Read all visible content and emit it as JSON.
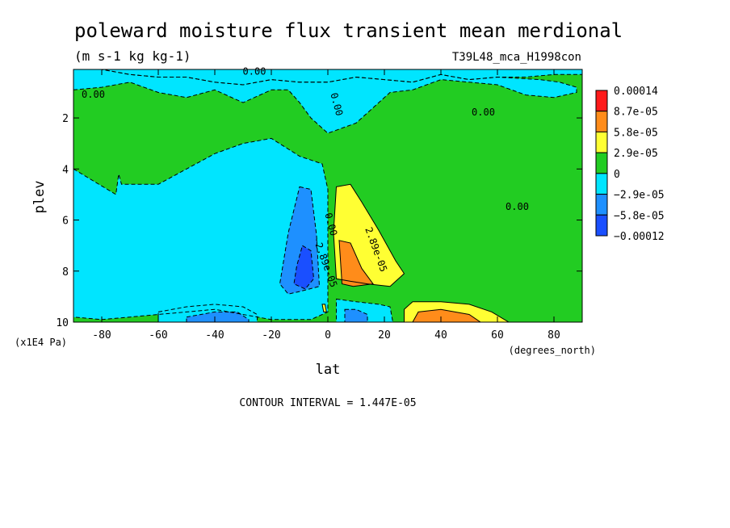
{
  "chart_data": {
    "type": "heatmap",
    "title": "poleward moisture flux transient mean merdional",
    "units": "(m s-1 kg kg-1)",
    "run_label": "T39L48_mca_H1998con",
    "xlabel": "lat",
    "x_units": "(degrees_north)",
    "ylabel": "plev",
    "y_units": "(x1E4 Pa)",
    "xlim": [
      -90,
      90
    ],
    "ylim": [
      10,
      0.1
    ],
    "x_ticks": [
      -80,
      -60,
      -40,
      -20,
      0,
      20,
      40,
      60,
      80
    ],
    "x_tick_labels": [
      "-80",
      "-60",
      "-40",
      "-20",
      "0",
      "20",
      "40",
      "60",
      "80"
    ],
    "y_ticks": [
      2,
      4,
      6,
      8,
      10
    ],
    "y_tick_labels": [
      "2",
      "4",
      "6",
      "8",
      "10"
    ],
    "footer": "CONTOUR INTERVAL = 1.447E-05",
    "colorbar": {
      "boundaries": [
        "0.00014",
        "8.7e-05",
        "5.8e-05",
        "2.9e-05",
        "0",
        "−2.9e-05",
        "−5.8e-05",
        "−0.00012"
      ],
      "colors": [
        "#ff1a1a",
        "#ff8c1a",
        "#ffff33",
        "#22cc22",
        "#00e5ff",
        "#1e90ff",
        "#1a4fff"
      ]
    },
    "contour_labels": [
      {
        "text": "0.00",
        "lat": -83,
        "plev": 1.2
      },
      {
        "text": "0.00",
        "lat": -26,
        "plev": 0.3
      },
      {
        "text": "0.00",
        "lat": 2,
        "plev": 1.5
      },
      {
        "text": "0.00",
        "lat": 55,
        "plev": 1.9
      },
      {
        "text": "0.00",
        "lat": 67,
        "plev": 5.6
      },
      {
        "text": "0.00",
        "lat": 0,
        "plev": 6.2
      },
      {
        "text": "-2.89e-05",
        "lat": -2,
        "plev": 7.7
      },
      {
        "text": "2.89e-05",
        "lat": 16,
        "plev": 7.2
      }
    ],
    "regions": [
      {
        "level": 0,
        "points": [
          [
            -90,
            0.1
          ],
          [
            90,
            0.1
          ],
          [
            90,
            10
          ],
          [
            -90,
            10
          ]
        ]
      },
      {
        "level": -1,
        "points": [
          [
            -90,
            0.1
          ],
          [
            -80,
            0.1
          ],
          [
            -70,
            0.3
          ],
          [
            -60,
            0.4
          ],
          [
            -50,
            0.4
          ],
          [
            -40,
            0.6
          ],
          [
            -30,
            0.7
          ],
          [
            -20,
            0.5
          ],
          [
            -10,
            0.6
          ],
          [
            0,
            0.6
          ],
          [
            10,
            0.4
          ],
          [
            20,
            0.5
          ],
          [
            30,
            0.6
          ],
          [
            40,
            0.3
          ],
          [
            50,
            0.5
          ],
          [
            60,
            0.4
          ],
          [
            70,
            0.4
          ],
          [
            80,
            0.3
          ],
          [
            90,
            0.3
          ],
          [
            90,
            0.1
          ]
        ]
      },
      {
        "level": -1,
        "points": [
          [
            -90,
            0.9
          ],
          [
            -80,
            0.8
          ],
          [
            -70,
            0.6
          ],
          [
            -60,
            1.0
          ],
          [
            -50,
            1.2
          ],
          [
            -40,
            0.9
          ],
          [
            -30,
            1.4
          ],
          [
            -20,
            0.9
          ],
          [
            -14,
            0.9
          ],
          [
            -10,
            1.4
          ],
          [
            -6,
            2.0
          ],
          [
            0,
            2.6
          ],
          [
            10,
            2.2
          ],
          [
            22,
            1.0
          ],
          [
            30,
            0.9
          ],
          [
            40,
            0.5
          ],
          [
            50,
            0.6
          ],
          [
            60,
            0.7
          ],
          [
            70,
            1.1
          ],
          [
            80,
            1.2
          ],
          [
            88,
            1.0
          ],
          [
            88,
            0.8
          ],
          [
            82,
            0.6
          ],
          [
            75,
            0.5
          ],
          [
            60,
            0.4
          ],
          [
            50,
            0.5
          ],
          [
            40,
            0.3
          ],
          [
            30,
            0.6
          ],
          [
            20,
            0.5
          ],
          [
            10,
            0.4
          ],
          [
            0,
            0.6
          ],
          [
            -10,
            0.6
          ],
          [
            -20,
            0.5
          ],
          [
            -30,
            0.7
          ],
          [
            -40,
            0.6
          ],
          [
            -50,
            0.4
          ],
          [
            -60,
            0.4
          ],
          [
            -70,
            0.3
          ],
          [
            -80,
            0.1
          ],
          [
            -90,
            0.1
          ]
        ]
      },
      {
        "level": -1,
        "points": [
          [
            -90,
            4.0
          ],
          [
            -75,
            5.0
          ],
          [
            -74,
            4.2
          ],
          [
            -73,
            4.6
          ],
          [
            -60,
            4.6
          ],
          [
            -50,
            4.0
          ],
          [
            -40,
            3.4
          ],
          [
            -30,
            3.0
          ],
          [
            -20,
            2.8
          ],
          [
            -10,
            3.5
          ],
          [
            -2,
            3.8
          ],
          [
            0,
            4.8
          ],
          [
            0,
            9.6
          ],
          [
            -6,
            9.9
          ],
          [
            -20,
            9.9
          ],
          [
            -30,
            9.7
          ],
          [
            -40,
            9.5
          ],
          [
            -50,
            9.6
          ],
          [
            -60,
            9.7
          ],
          [
            -70,
            9.8
          ],
          [
            -80,
            9.9
          ],
          [
            -90,
            9.8
          ]
        ]
      },
      {
        "level": -2,
        "points": [
          [
            -10,
            4.7
          ],
          [
            -6,
            4.8
          ],
          [
            -4,
            6.6
          ],
          [
            -3,
            8.6
          ],
          [
            -10,
            8.8
          ],
          [
            -14,
            8.9
          ],
          [
            -17,
            8.5
          ],
          [
            -14,
            6.5
          ]
        ]
      },
      {
        "level": -3,
        "points": [
          [
            -9,
            7.0
          ],
          [
            -6,
            7.2
          ],
          [
            -5,
            8.3
          ],
          [
            -8,
            8.7
          ],
          [
            -12,
            8.5
          ],
          [
            -11,
            7.8
          ]
        ]
      },
      {
        "level": -1,
        "points": [
          [
            -60,
            9.6
          ],
          [
            -50,
            9.4
          ],
          [
            -40,
            9.3
          ],
          [
            -30,
            9.4
          ],
          [
            -25,
            9.7
          ],
          [
            -25,
            10
          ],
          [
            -60,
            10
          ]
        ]
      },
      {
        "level": -2,
        "points": [
          [
            -50,
            9.8
          ],
          [
            -40,
            9.6
          ],
          [
            -32,
            9.6
          ],
          [
            -28,
            9.9
          ],
          [
            -28,
            10
          ],
          [
            -50,
            10
          ]
        ]
      },
      {
        "level": -1,
        "points": [
          [
            3,
            9.1
          ],
          [
            10,
            9.2
          ],
          [
            18,
            9.3
          ],
          [
            22,
            9.4
          ],
          [
            23,
            10
          ],
          [
            3,
            10
          ]
        ]
      },
      {
        "level": -2,
        "points": [
          [
            6,
            9.5
          ],
          [
            10,
            9.5
          ],
          [
            14,
            9.7
          ],
          [
            14,
            10
          ],
          [
            6,
            10
          ]
        ]
      },
      {
        "level": 1,
        "points": [
          [
            3,
            4.7
          ],
          [
            8,
            4.6
          ],
          [
            12,
            5.3
          ],
          [
            18,
            6.4
          ],
          [
            24,
            7.6
          ],
          [
            27,
            8.1
          ],
          [
            22,
            8.6
          ],
          [
            14,
            8.5
          ],
          [
            8,
            8.4
          ],
          [
            3,
            8.3
          ],
          [
            2,
            6.5
          ]
        ]
      },
      {
        "level": 2,
        "points": [
          [
            4,
            6.8
          ],
          [
            8,
            6.9
          ],
          [
            12,
            7.9
          ],
          [
            16,
            8.5
          ],
          [
            9,
            8.6
          ],
          [
            5,
            8.5
          ]
        ]
      },
      {
        "level": 1,
        "points": [
          [
            27,
            9.5
          ],
          [
            30,
            9.2
          ],
          [
            40,
            9.2
          ],
          [
            50,
            9.3
          ],
          [
            58,
            9.6
          ],
          [
            64,
            10
          ],
          [
            27,
            10
          ]
        ]
      },
      {
        "level": 2,
        "points": [
          [
            32,
            9.6
          ],
          [
            40,
            9.5
          ],
          [
            50,
            9.7
          ],
          [
            54,
            10
          ],
          [
            30,
            10
          ]
        ]
      },
      {
        "level": 1,
        "points": [
          [
            -2,
            9.3
          ],
          [
            -1,
            9.3
          ],
          [
            -0.5,
            9.6
          ],
          [
            -1.5,
            9.6
          ]
        ]
      }
    ]
  }
}
